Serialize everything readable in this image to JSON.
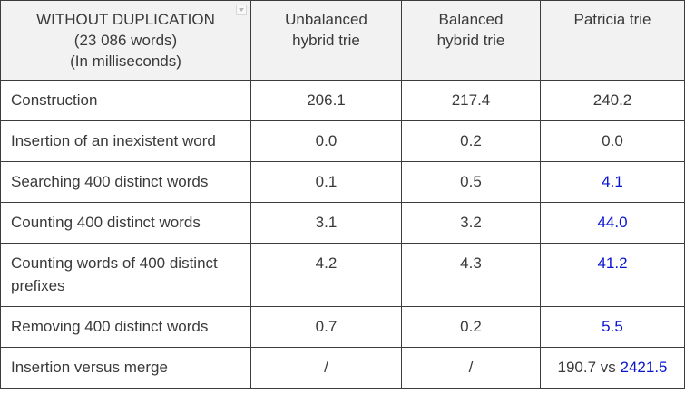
{
  "header": {
    "corner": [
      "WITHOUT DUPLICATION",
      "(23 086 words)",
      "(In milliseconds)"
    ],
    "columns": [
      [
        "Unbalanced",
        "hybrid trie"
      ],
      [
        "Balanced",
        "hybrid trie"
      ],
      [
        "Patricia trie"
      ]
    ]
  },
  "rows": [
    {
      "label": "Construction",
      "unbalanced": "206.1",
      "balanced": "217.4",
      "patricia": "240.2",
      "patricia_highlight": false
    },
    {
      "label": "Insertion of an inexistent word",
      "unbalanced": "0.0",
      "balanced": "0.2",
      "patricia": "0.0",
      "patricia_highlight": false
    },
    {
      "label": "Searching 400 distinct words",
      "unbalanced": "0.1",
      "balanced": "0.5",
      "patricia": "4.1",
      "patricia_highlight": true
    },
    {
      "label": "Counting 400 distinct words",
      "unbalanced": "3.1",
      "balanced": "3.2",
      "patricia": "44.0",
      "patricia_highlight": true
    },
    {
      "label": "Counting words of 400 distinct prefixes",
      "unbalanced": "4.2",
      "balanced": "4.3",
      "patricia": "41.2",
      "patricia_highlight": true
    },
    {
      "label": "Removing 400 distinct words",
      "unbalanced": "0.7",
      "balanced": "0.2",
      "patricia": "5.5",
      "patricia_highlight": true
    },
    {
      "label": "Insertion versus merge",
      "unbalanced": "/",
      "balanced": "/",
      "patricia_prefix": "190.7 vs ",
      "patricia": "2421.5",
      "patricia_highlight": true
    }
  ],
  "colors": {
    "text": "#3a3a3a",
    "highlight": "#0a14d2",
    "header_bg": "#f2f2f2",
    "border": "#3c3c3c"
  },
  "icons": {
    "header_dropdown": "chevron-down-icon"
  }
}
